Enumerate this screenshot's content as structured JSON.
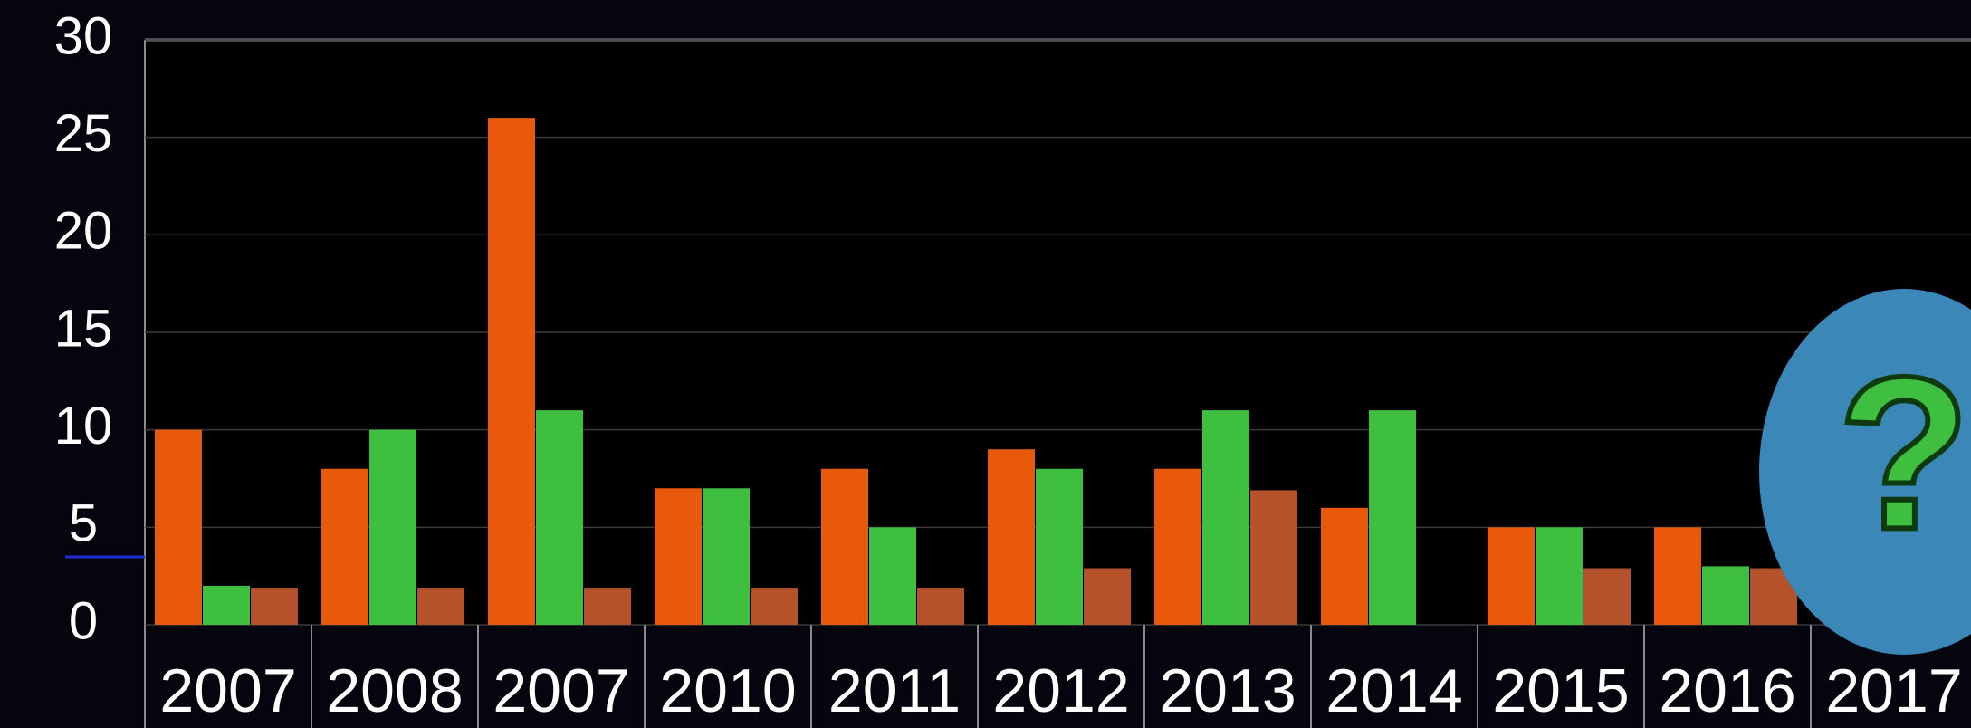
{
  "chart_data": {
    "type": "bar",
    "categories": [
      "2007",
      "2008",
      "2007",
      "2010",
      "2011",
      "2012",
      "2013",
      "2014",
      "2015",
      "2016",
      "2017"
    ],
    "series": [
      {
        "color": "#e8590c",
        "values": [
          10,
          8,
          26,
          7,
          8,
          9,
          8,
          6,
          5,
          5,
          null
        ]
      },
      {
        "color": "#3fbf3f",
        "values": [
          2,
          10,
          11,
          7,
          5,
          8,
          11,
          11,
          5,
          3,
          null
        ]
      },
      {
        "color": "#b5522c",
        "values": [
          1.9,
          1.9,
          1.9,
          1.9,
          1.9,
          2.9,
          6.9,
          null,
          2.9,
          2.9,
          null
        ]
      }
    ],
    "ylim": [
      0,
      30
    ],
    "yticks": [
      0,
      5,
      10,
      15,
      20,
      25,
      30
    ],
    "grid": true,
    "annotation": "?"
  }
}
